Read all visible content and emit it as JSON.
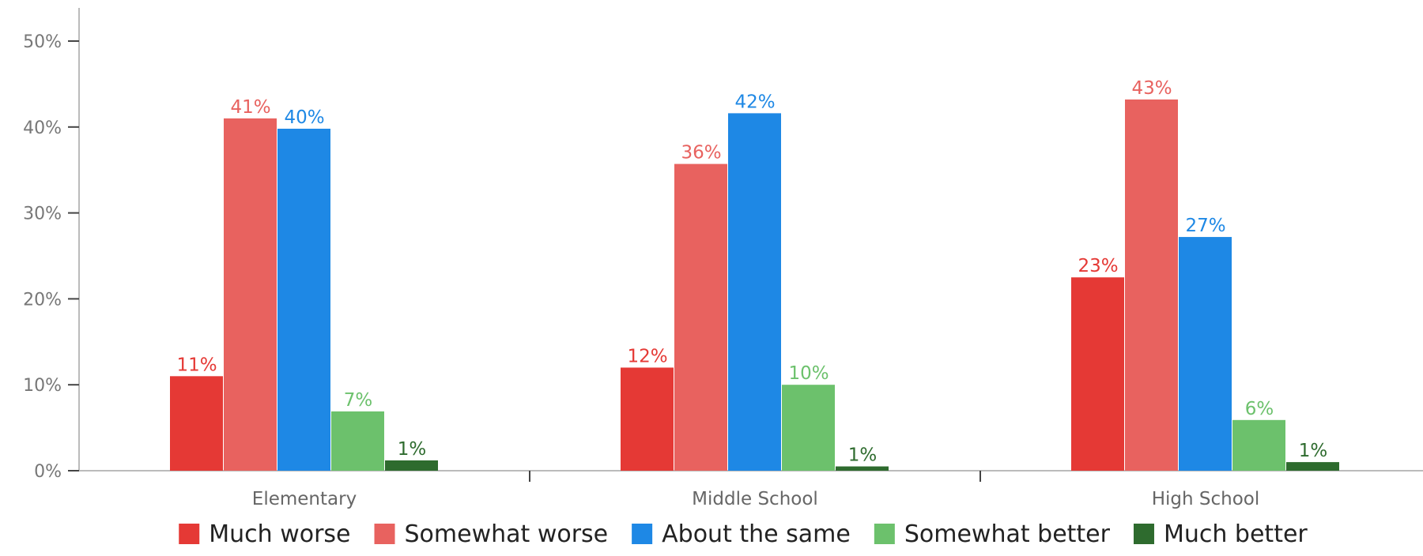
{
  "chart_data": {
    "type": "bar",
    "title": "",
    "xlabel": "",
    "ylabel": "",
    "categories": [
      "Elementary",
      "Middle School",
      "High School"
    ],
    "ylim": [
      0,
      50
    ],
    "yticks": [
      "0%",
      "10%",
      "20%",
      "30%",
      "40%",
      "50%"
    ],
    "ytick_values": [
      0,
      10,
      20,
      30,
      40,
      50
    ],
    "legend_position": "bottom",
    "grid": false,
    "series": [
      {
        "name": "Much worse",
        "color": "#e53935",
        "label_color": "#e53935",
        "values": [
          11,
          12,
          22.5
        ],
        "labels": [
          "11%",
          "12%",
          "23%"
        ]
      },
      {
        "name": "Somewhat worse",
        "color": "#e8625f",
        "label_color": "#e8625f",
        "values": [
          41,
          35.7,
          43.2
        ],
        "labels": [
          "41%",
          "36%",
          "43%"
        ]
      },
      {
        "name": "About the same",
        "color": "#1e88e5",
        "label_color": "#1e88e5",
        "values": [
          39.8,
          41.6,
          27.2
        ],
        "labels": [
          "40%",
          "42%",
          "27%"
        ]
      },
      {
        "name": "Somewhat better",
        "color": "#6cc16c",
        "label_color": "#6cc16c",
        "values": [
          6.9,
          10,
          5.9
        ],
        "labels": [
          "7%",
          "10%",
          "6%"
        ]
      },
      {
        "name": "Much better",
        "color": "#2e6b2e",
        "label_color": "#2e6b2e",
        "values": [
          1.2,
          0.5,
          1
        ],
        "labels": [
          "1%",
          "1%",
          "1%"
        ]
      }
    ]
  }
}
